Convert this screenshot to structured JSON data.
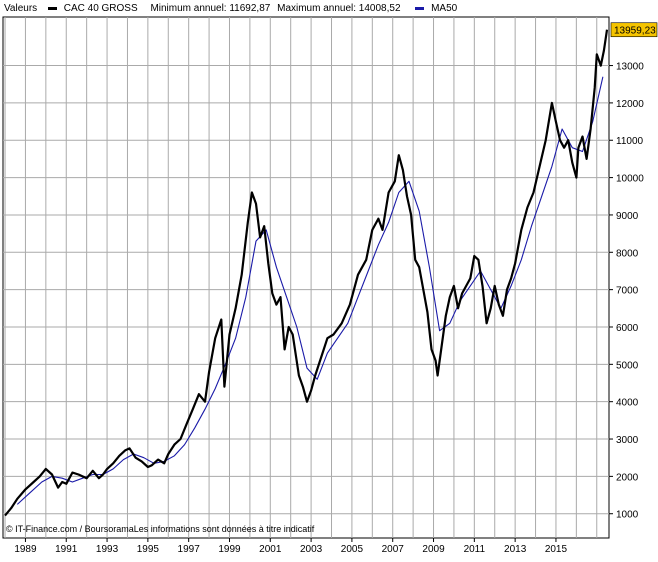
{
  "legend": {
    "label": "Valeurs",
    "series_name": "CAC 40 GROSS",
    "min_label": "Minimum annuel: 11692,87",
    "max_label": "Maximum annuel: 14008,52",
    "ma_name": "MA50"
  },
  "footer": {
    "source": "IT-Finance.com / BoursoramaLes informations sont données à titre indicatif"
  },
  "colors": {
    "price": "#000000",
    "ma": "#1a1aa8",
    "grid": "#aaaaaa",
    "last_box": "#f5c400"
  },
  "chart_data": {
    "type": "line",
    "title": "",
    "xlabel": "",
    "ylabel": "",
    "x_ticks": [
      "1989",
      "1991",
      "1993",
      "1995",
      "1997",
      "1999",
      "2001",
      "2003",
      "2005",
      "2007",
      "2009",
      "2011",
      "2013",
      "2015"
    ],
    "y_ticks": [
      1000,
      2000,
      3000,
      4000,
      5000,
      6000,
      7000,
      8000,
      9000,
      10000,
      11000,
      12000,
      13000
    ],
    "xlim": [
      1987.9,
      2017.6
    ],
    "ylim": [
      350,
      14300
    ],
    "grid": true,
    "last_value_label": "13959,23",
    "series": [
      {
        "name": "CAC 40 GROSS",
        "x": [
          1988.0,
          1988.3,
          1988.6,
          1989.0,
          1989.4,
          1989.7,
          1990.0,
          1990.3,
          1990.6,
          1990.8,
          1991.0,
          1991.3,
          1991.6,
          1992.0,
          1992.3,
          1992.6,
          1992.8,
          1993.0,
          1993.3,
          1993.6,
          1993.9,
          1994.1,
          1994.4,
          1994.7,
          1995.0,
          1995.2,
          1995.5,
          1995.8,
          1996.0,
          1996.3,
          1996.6,
          1996.9,
          1997.2,
          1997.5,
          1997.8,
          1998.0,
          1998.3,
          1998.6,
          1998.75,
          1999.0,
          1999.3,
          1999.6,
          1999.9,
          2000.1,
          2000.3,
          2000.5,
          2000.7,
          2000.9,
          2001.1,
          2001.3,
          2001.5,
          2001.7,
          2001.9,
          2002.1,
          2002.4,
          2002.6,
          2002.8,
          2003.0,
          2003.2,
          2003.5,
          2003.8,
          2004.1,
          2004.5,
          2004.9,
          2005.3,
          2005.7,
          2006.0,
          2006.3,
          2006.5,
          2006.8,
          2007.1,
          2007.3,
          2007.5,
          2007.7,
          2007.9,
          2008.1,
          2008.3,
          2008.5,
          2008.7,
          2008.9,
          2009.1,
          2009.2,
          2009.4,
          2009.6,
          2009.8,
          2010.0,
          2010.2,
          2010.4,
          2010.6,
          2010.8,
          2011.0,
          2011.2,
          2011.4,
          2011.6,
          2011.8,
          2012.0,
          2012.2,
          2012.4,
          2012.6,
          2012.8,
          2013.0,
          2013.3,
          2013.6,
          2013.9,
          2014.2,
          2014.5,
          2014.8,
          2015.0,
          2015.2,
          2015.4,
          2015.6,
          2015.8,
          2016.0,
          2016.1,
          2016.3,
          2016.5,
          2016.7,
          2016.9,
          2017.0,
          2017.2,
          2017.35,
          2017.5
        ],
        "values": [
          950,
          1150,
          1400,
          1650,
          1850,
          2000,
          2200,
          2050,
          1700,
          1850,
          1800,
          2100,
          2050,
          1950,
          2150,
          1950,
          2050,
          2200,
          2350,
          2550,
          2700,
          2750,
          2500,
          2400,
          2250,
          2300,
          2450,
          2350,
          2600,
          2850,
          3000,
          3400,
          3800,
          4200,
          4000,
          4800,
          5700,
          6200,
          4400,
          5800,
          6500,
          7400,
          8800,
          9600,
          9300,
          8400,
          8700,
          7700,
          6900,
          6600,
          6800,
          5400,
          6000,
          5800,
          4700,
          4400,
          4000,
          4300,
          4700,
          5200,
          5700,
          5800,
          6100,
          6600,
          7400,
          7800,
          8600,
          8900,
          8600,
          9600,
          9900,
          10600,
          10200,
          9500,
          9000,
          7800,
          7600,
          7000,
          6400,
          5400,
          5100,
          4700,
          5500,
          6300,
          6800,
          7100,
          6500,
          6900,
          7100,
          7300,
          7900,
          7800,
          7100,
          6100,
          6500,
          7100,
          6600,
          6300,
          7000,
          7300,
          7700,
          8600,
          9200,
          9600,
          10300,
          11000,
          12000,
          11500,
          11000,
          10800,
          11000,
          10400,
          10000,
          10800,
          11100,
          10500,
          11300,
          12400,
          13300,
          13000,
          13400,
          13959
        ]
      },
      {
        "name": "MA50",
        "x": [
          1988.6,
          1989.2,
          1989.8,
          1990.3,
          1990.8,
          1991.3,
          1991.8,
          1992.3,
          1992.8,
          1993.3,
          1993.8,
          1994.3,
          1994.8,
          1995.3,
          1995.8,
          1996.3,
          1996.8,
          1997.3,
          1997.8,
          1998.3,
          1998.8,
          1999.3,
          1999.8,
          2000.3,
          2000.8,
          2001.3,
          2001.8,
          2002.3,
          2002.8,
          2003.3,
          2003.8,
          2004.3,
          2004.8,
          2005.3,
          2005.8,
          2006.3,
          2006.8,
          2007.3,
          2007.8,
          2008.3,
          2008.8,
          2009.3,
          2009.8,
          2010.3,
          2010.8,
          2011.3,
          2011.8,
          2012.3,
          2012.8,
          2013.3,
          2013.8,
          2014.3,
          2014.8,
          2015.3,
          2015.8,
          2016.3,
          2016.8,
          2017.3
        ],
        "values": [
          1250,
          1550,
          1850,
          2000,
          1950,
          1850,
          1950,
          2050,
          2050,
          2200,
          2450,
          2600,
          2500,
          2350,
          2400,
          2550,
          2850,
          3300,
          3800,
          4350,
          5000,
          5700,
          6800,
          8300,
          8600,
          7600,
          6800,
          6000,
          4900,
          4600,
          5300,
          5700,
          6100,
          6800,
          7500,
          8200,
          8800,
          9600,
          9900,
          9100,
          7600,
          5900,
          6100,
          6700,
          7100,
          7500,
          7000,
          6500,
          7100,
          7800,
          8700,
          9500,
          10300,
          11300,
          10800,
          10700,
          11500,
          12700
        ]
      }
    ]
  }
}
